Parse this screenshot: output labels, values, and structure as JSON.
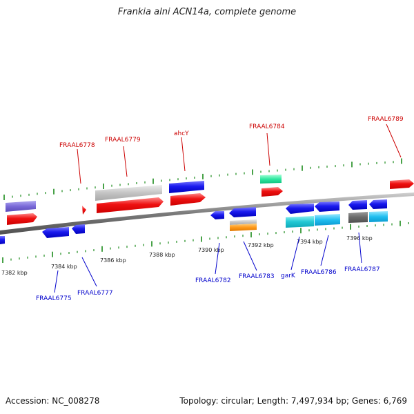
{
  "title": "Frankia alni ACN14a, complete genome",
  "footer": {
    "accession": "Accession: NC_008278",
    "summary": "Topology: circular; Length: 7,497,934 bp; Genes: 6,769"
  },
  "colors": {
    "backbone": "#8a8a8a",
    "tick": "#1a8a1a",
    "forward_label": "#cc0000",
    "reverse_label": "#0000cc",
    "tick_text": "#222222"
  },
  "scale_labels": [
    "7382 kbp",
    "7384 kbp",
    "7386 kbp",
    "7388 kbp",
    "7390 kbp",
    "7392 kbp",
    "7394 kbp",
    "7396 kbp"
  ],
  "forward_gene_labels": [
    "FRAAL6778",
    "FRAAL6779",
    "ahcY",
    "FRAAL6784",
    "FRAAL6789"
  ],
  "reverse_gene_labels": [
    "FRAAL6775",
    "FRAAL6777",
    "FRAAL6782",
    "FRAAL6783",
    "garK",
    "FRAAL6786",
    "FRAAL6787"
  ]
}
